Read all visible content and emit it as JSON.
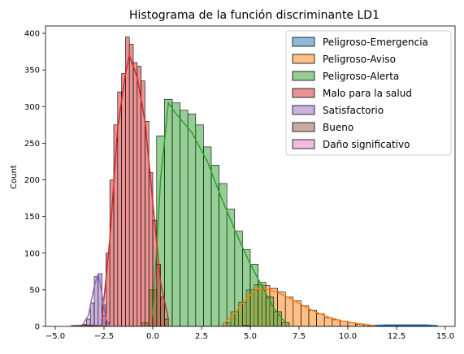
{
  "chart_data": {
    "type": "histogram",
    "title": "Histograma de la función discriminante LD1",
    "xlabel": "",
    "ylabel": "Count",
    "xlim": [
      -5.5,
      15.5
    ],
    "ylim": [
      0,
      410
    ],
    "xticks": [
      -5.0,
      -2.5,
      0.0,
      2.5,
      5.0,
      7.5,
      10.0,
      12.5,
      15.0
    ],
    "xtick_labels": [
      "−5.0",
      "−2.5",
      "0.0",
      "2.5",
      "5.0",
      "7.5",
      "10.0",
      "12.5",
      "15.0"
    ],
    "yticks": [
      0,
      50,
      100,
      150,
      200,
      250,
      300,
      350,
      400
    ],
    "ytick_labels": [
      "0",
      "50",
      "100",
      "150",
      "200",
      "250",
      "300",
      "350",
      "400"
    ],
    "grid": false,
    "legend_position": "top-right",
    "series": [
      {
        "name": "Peligroso-Emergencia",
        "color": "#1f77b4",
        "bins": [
          [
            11.4,
            11.8,
            1
          ],
          [
            11.8,
            12.2,
            1
          ],
          [
            12.2,
            12.6,
            1
          ],
          [
            12.6,
            13.0,
            1
          ],
          [
            13.0,
            13.4,
            1
          ],
          [
            13.4,
            13.8,
            1
          ],
          [
            13.8,
            14.2,
            1
          ],
          [
            14.2,
            14.6,
            1
          ]
        ],
        "kde": [
          [
            11.0,
            1
          ],
          [
            12.0,
            2
          ],
          [
            13.0,
            2
          ],
          [
            14.0,
            2
          ],
          [
            14.6,
            1
          ]
        ]
      },
      {
        "name": "Peligroso-Aviso",
        "color": "#ff7f0e",
        "bins": [
          [
            3.6,
            4.0,
            5
          ],
          [
            4.0,
            4.4,
            20
          ],
          [
            4.4,
            4.8,
            33
          ],
          [
            4.8,
            5.2,
            50
          ],
          [
            5.2,
            5.6,
            57
          ],
          [
            5.6,
            6.0,
            56
          ],
          [
            6.0,
            6.4,
            52
          ],
          [
            6.4,
            6.8,
            47
          ],
          [
            6.8,
            7.2,
            40
          ],
          [
            7.2,
            7.6,
            35
          ],
          [
            7.6,
            8.0,
            28
          ],
          [
            8.0,
            8.4,
            22
          ],
          [
            8.4,
            8.8,
            17
          ],
          [
            8.8,
            9.2,
            12
          ],
          [
            9.2,
            9.6,
            9
          ],
          [
            9.6,
            10.0,
            7
          ],
          [
            10.0,
            10.4,
            5
          ],
          [
            10.4,
            10.8,
            3
          ],
          [
            10.8,
            11.2,
            2
          ],
          [
            11.2,
            11.6,
            1
          ]
        ],
        "kde": [
          [
            3.6,
            3
          ],
          [
            4.2,
            18
          ],
          [
            4.8,
            38
          ],
          [
            5.4,
            52
          ],
          [
            6.0,
            50
          ],
          [
            6.6,
            44
          ],
          [
            7.2,
            36
          ],
          [
            7.8,
            27
          ],
          [
            8.4,
            19
          ],
          [
            9.0,
            13
          ],
          [
            9.6,
            8
          ],
          [
            10.2,
            5
          ],
          [
            10.8,
            3
          ],
          [
            11.4,
            1
          ]
        ]
      },
      {
        "name": "Peligroso-Alerta",
        "color": "#2ca02c",
        "bins": [
          [
            -0.6,
            -0.2,
            5
          ],
          [
            -0.2,
            0.2,
            50
          ],
          [
            0.2,
            0.6,
            260
          ],
          [
            0.6,
            1.0,
            310
          ],
          [
            1.0,
            1.4,
            305
          ],
          [
            1.4,
            1.8,
            295
          ],
          [
            1.8,
            2.2,
            290
          ],
          [
            2.2,
            2.6,
            275
          ],
          [
            2.6,
            3.0,
            245
          ],
          [
            3.0,
            3.4,
            220
          ],
          [
            3.4,
            3.8,
            195
          ],
          [
            3.8,
            4.2,
            160
          ],
          [
            4.2,
            4.6,
            130
          ],
          [
            4.6,
            5.0,
            105
          ],
          [
            5.0,
            5.4,
            85
          ],
          [
            5.4,
            5.8,
            60
          ],
          [
            5.8,
            6.2,
            40
          ],
          [
            6.2,
            6.6,
            20
          ],
          [
            6.6,
            7.0,
            5
          ]
        ],
        "kde": [
          [
            0.0,
            15
          ],
          [
            0.4,
            200
          ],
          [
            0.8,
            305
          ],
          [
            1.2,
            290
          ],
          [
            2.0,
            265
          ],
          [
            2.8,
            225
          ],
          [
            3.6,
            170
          ],
          [
            4.4,
            120
          ],
          [
            5.0,
            85
          ],
          [
            5.6,
            55
          ],
          [
            6.2,
            25
          ],
          [
            6.8,
            5
          ]
        ]
      },
      {
        "name": "Malo para la salud",
        "color": "#d62728",
        "bins": [
          [
            -2.6,
            -2.4,
            15
          ],
          [
            -2.4,
            -2.2,
            100
          ],
          [
            -2.2,
            -2.0,
            200
          ],
          [
            -2.0,
            -1.8,
            275
          ],
          [
            -1.8,
            -1.6,
            320
          ],
          [
            -1.6,
            -1.4,
            345
          ],
          [
            -1.4,
            -1.2,
            395
          ],
          [
            -1.2,
            -1.0,
            385
          ],
          [
            -1.0,
            -0.8,
            360
          ],
          [
            -0.8,
            -0.6,
            355
          ],
          [
            -0.6,
            -0.4,
            335
          ],
          [
            -0.4,
            -0.2,
            280
          ],
          [
            -0.2,
            0.0,
            210
          ],
          [
            0.0,
            0.2,
            145
          ],
          [
            0.2,
            0.4,
            85
          ],
          [
            0.4,
            0.6,
            40
          ],
          [
            0.6,
            0.8,
            10
          ]
        ],
        "kde": [
          [
            -2.6,
            10
          ],
          [
            -2.2,
            120
          ],
          [
            -1.8,
            270
          ],
          [
            -1.4,
            345
          ],
          [
            -1.2,
            370
          ],
          [
            -0.8,
            340
          ],
          [
            -0.4,
            280
          ],
          [
            0.0,
            170
          ],
          [
            0.4,
            60
          ],
          [
            0.8,
            10
          ]
        ]
      },
      {
        "name": "Satisfactorio",
        "color": "#9467bd",
        "bins": [
          [
            -3.6,
            -3.4,
            3
          ],
          [
            -3.4,
            -3.2,
            10
          ],
          [
            -3.2,
            -3.0,
            32
          ],
          [
            -3.0,
            -2.8,
            68
          ],
          [
            -2.8,
            -2.6,
            72
          ],
          [
            -2.6,
            -2.4,
            30
          ],
          [
            -2.4,
            -2.2,
            5
          ]
        ],
        "kde": [
          [
            -3.6,
            2
          ],
          [
            -3.3,
            15
          ],
          [
            -3.0,
            55
          ],
          [
            -2.8,
            72
          ],
          [
            -2.6,
            45
          ],
          [
            -2.4,
            10
          ],
          [
            -2.2,
            1
          ]
        ]
      },
      {
        "name": "Bueno",
        "color": "#8c564b",
        "bins": [
          [
            -4.0,
            -3.6,
            1
          ],
          [
            -3.6,
            -3.2,
            1
          ],
          [
            -3.2,
            -2.8,
            1
          ]
        ],
        "kde": [
          [
            -4.2,
            1
          ],
          [
            -3.2,
            2
          ],
          [
            -2.6,
            1
          ]
        ]
      },
      {
        "name": "Daño significativo",
        "color": "#e377c2",
        "bins": [
          [
            4.6,
            4.8,
            1
          ],
          [
            4.8,
            5.0,
            1
          ]
        ],
        "kde": []
      }
    ]
  }
}
